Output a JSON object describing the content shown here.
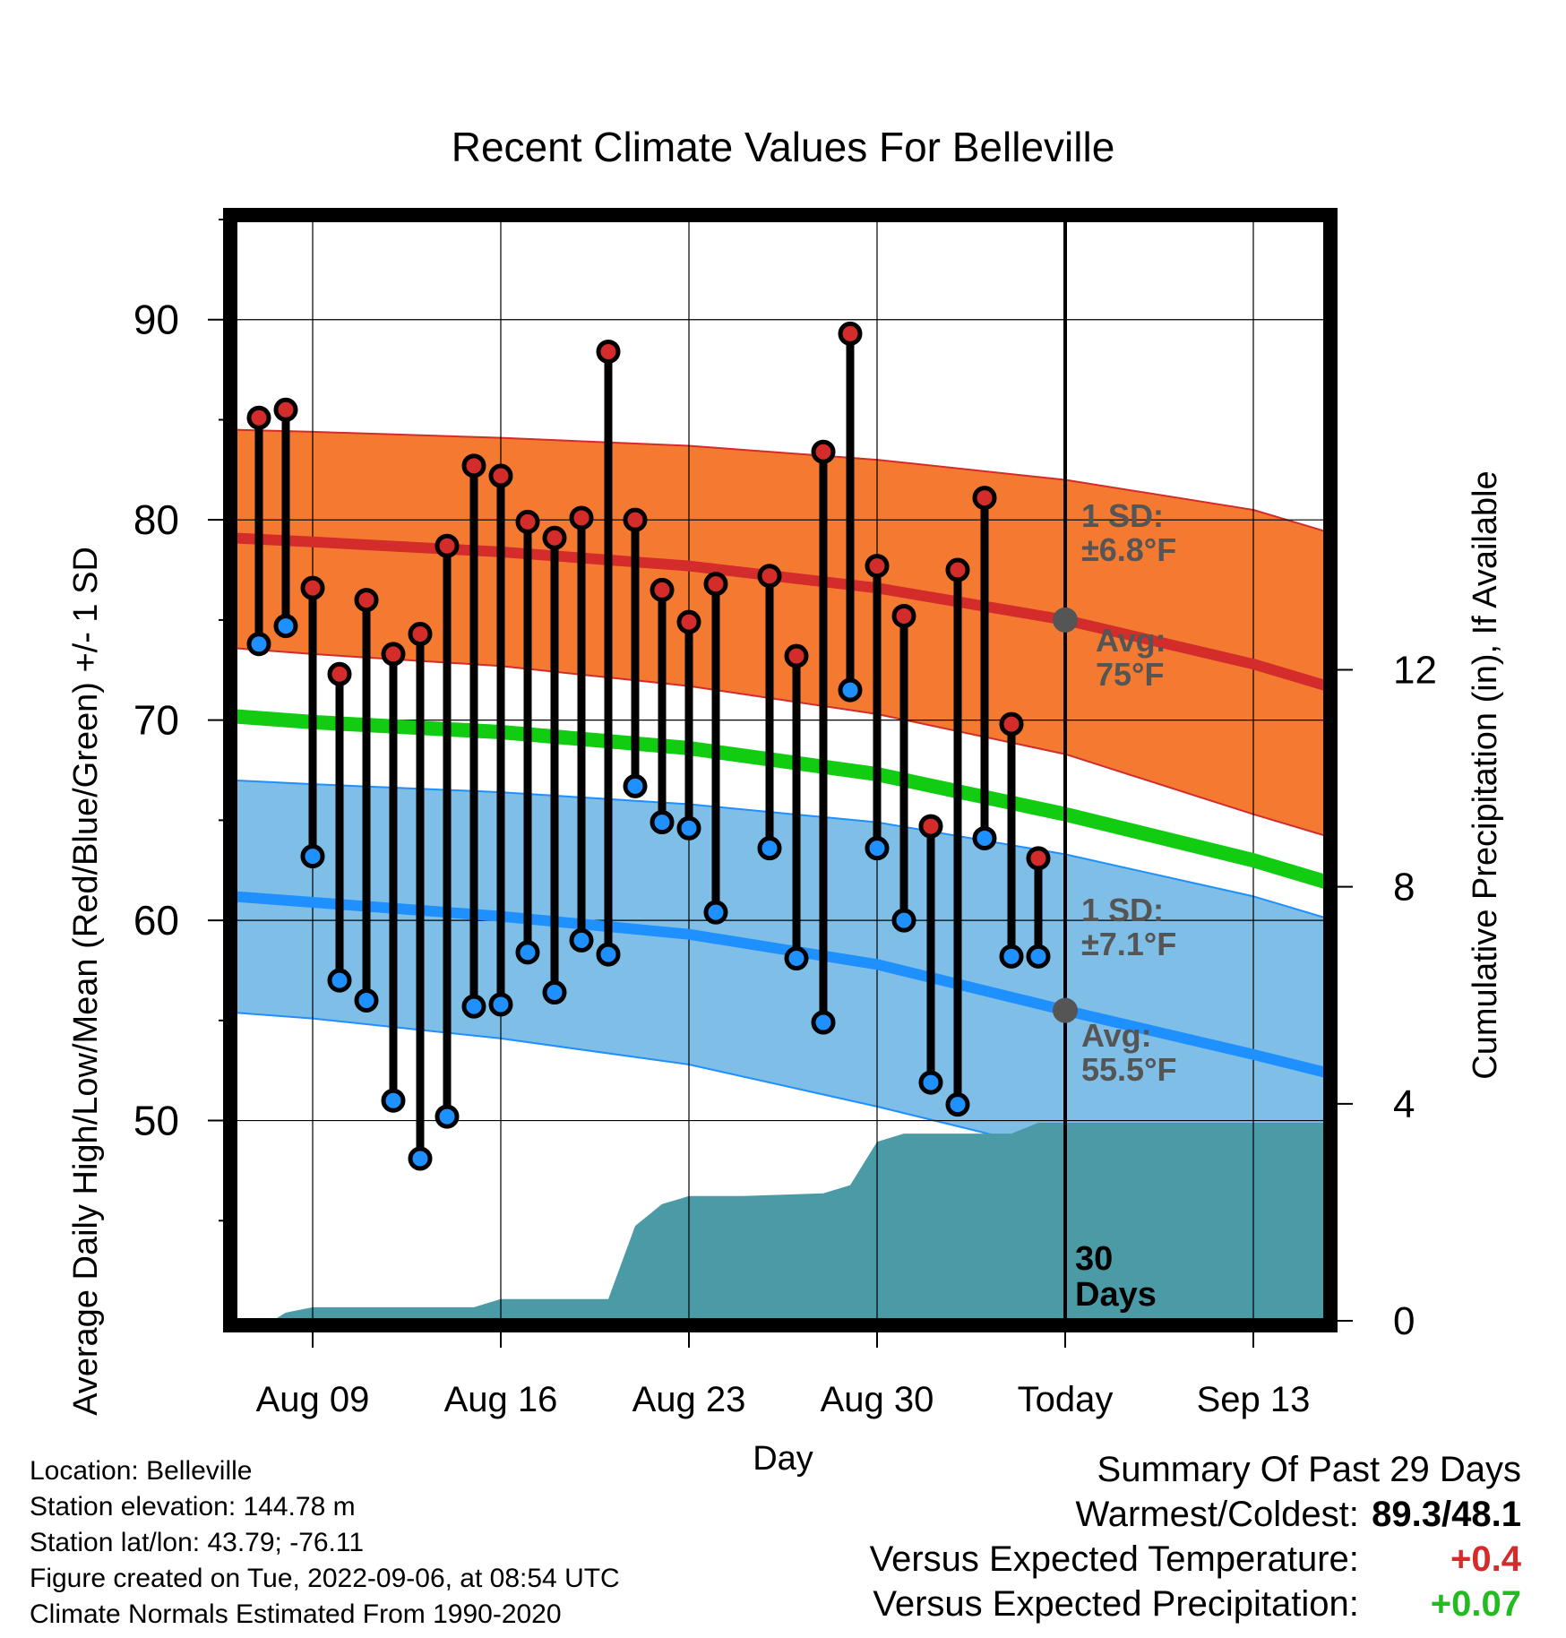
{
  "chart_data": {
    "type": "line",
    "title": "Recent Climate Values For Belleville",
    "xlabel": "Day",
    "ylabel": "Average Daily High/Low/Mean (Red/Blue/Green) +/- 1 SD",
    "y2label": "Cumulative Precipitation (in), If Available",
    "x_tick_labels": [
      "Aug 09",
      "Aug 16",
      "Aug 23",
      "Aug 30",
      "Today",
      "Sep 13"
    ],
    "x_tick_days": [
      0,
      7,
      14,
      21,
      28,
      35
    ],
    "x_range_days": [
      -3.2,
      37.8
    ],
    "ylim": [
      40,
      95
    ],
    "y_ticks": [
      50,
      60,
      70,
      80,
      90
    ],
    "y2lim": [
      0,
      20.3
    ],
    "y2_ticks": [
      0,
      4,
      8,
      12
    ],
    "grid": true,
    "daily_observations": {
      "days": [
        -2,
        -1,
        0,
        1,
        2,
        3,
        4,
        5,
        6,
        7,
        8,
        9,
        10,
        11,
        12,
        13,
        14,
        15,
        17,
        18,
        19,
        20,
        21,
        22,
        23,
        24,
        25,
        26,
        27
      ],
      "highs": [
        85.1,
        85.5,
        76.6,
        72.3,
        76.0,
        73.3,
        74.3,
        78.7,
        82.7,
        82.2,
        79.9,
        79.1,
        80.1,
        88.4,
        80.0,
        76.5,
        74.9,
        76.8,
        77.2,
        73.2,
        83.4,
        89.3,
        77.7,
        75.2,
        64.7,
        77.5,
        81.1,
        69.8,
        63.1
      ],
      "lows": [
        73.8,
        74.7,
        63.2,
        57.0,
        56.0,
        51.0,
        48.1,
        50.2,
        55.7,
        55.8,
        58.4,
        56.4,
        59.0,
        58.3,
        66.7,
        64.9,
        64.6,
        60.4,
        63.6,
        58.1,
        54.9,
        71.5,
        63.6,
        60.0,
        51.9,
        50.8,
        64.1,
        58.2,
        58.2
      ]
    },
    "normals": {
      "days": [
        -3,
        0,
        7,
        14,
        21,
        28,
        35,
        38
      ],
      "high_avg": [
        79.1,
        78.9,
        78.4,
        77.7,
        76.6,
        75.0,
        72.8,
        71.6
      ],
      "high_plus": [
        84.5,
        84.4,
        84.1,
        83.7,
        83.0,
        82.0,
        80.5,
        79.3
      ],
      "high_minus": [
        73.6,
        73.3,
        72.7,
        71.7,
        70.3,
        68.3,
        65.3,
        64.1
      ],
      "mean": [
        70.2,
        69.9,
        69.4,
        68.6,
        67.3,
        65.3,
        63.0,
        61.8
      ],
      "low_avg": [
        61.2,
        60.9,
        60.2,
        59.3,
        57.8,
        55.5,
        53.3,
        52.3
      ],
      "low_plus": [
        67.0,
        66.8,
        66.4,
        65.8,
        64.9,
        63.3,
        61.2,
        60.0
      ],
      "low_minus": [
        55.4,
        55.1,
        54.1,
        52.8,
        50.7,
        48.4,
        46.3,
        45.6
      ]
    },
    "cumulative_precipitation": {
      "days": [
        -3,
        -1.5,
        -1,
        0,
        6,
        7,
        11,
        12,
        13,
        14,
        16,
        19,
        20,
        21,
        22,
        25,
        26,
        27,
        38
      ],
      "inches": [
        0,
        0,
        0.15,
        0.25,
        0.25,
        0.4,
        0.4,
        1.75,
        2.15,
        2.3,
        2.3,
        2.35,
        2.5,
        3.3,
        3.45,
        3.45,
        3.45,
        3.65,
        3.65
      ]
    },
    "today_day": 28,
    "annotations": {
      "high_sd": "1 SD:\n±6.8°F",
      "high_avg": "Avg:\n75°F",
      "low_sd": "1 SD:\n±7.1°F",
      "low_avg": "Avg:\n55.5°F",
      "window": "30\nDays"
    },
    "colors": {
      "high_band": "#f47a32",
      "high_line": "#d42b2b",
      "mean_line": "#11cc11",
      "low_band": "#7fbee6",
      "low_line": "#1e90ff",
      "precip": "#4a9ba5",
      "high_dot": "#d42b2b",
      "low_dot": "#1e90ff",
      "annotation": "#555555"
    }
  },
  "meta": {
    "location": "Location: Belleville",
    "elevation": "Station elevation: 144.78 m",
    "latlon": "Station lat/lon: 43.79; -76.11",
    "created": "Figure created on Tue, 2022-09-06, at 08:54 UTC",
    "normals": "Climate Normals Estimated From 1990-2020"
  },
  "summary": {
    "title": "Summary Of Past 29 Days",
    "warm_cold_label": "Warmest/Coldest:",
    "warm_cold_value": "89.3/48.1",
    "temp_label": "Versus Expected Temperature:",
    "temp_value": "+0.4",
    "temp_color": "#d42b2b",
    "precip_label": "Versus Expected Precipitation:",
    "precip_value": "+0.07",
    "precip_color": "#22bb22"
  }
}
